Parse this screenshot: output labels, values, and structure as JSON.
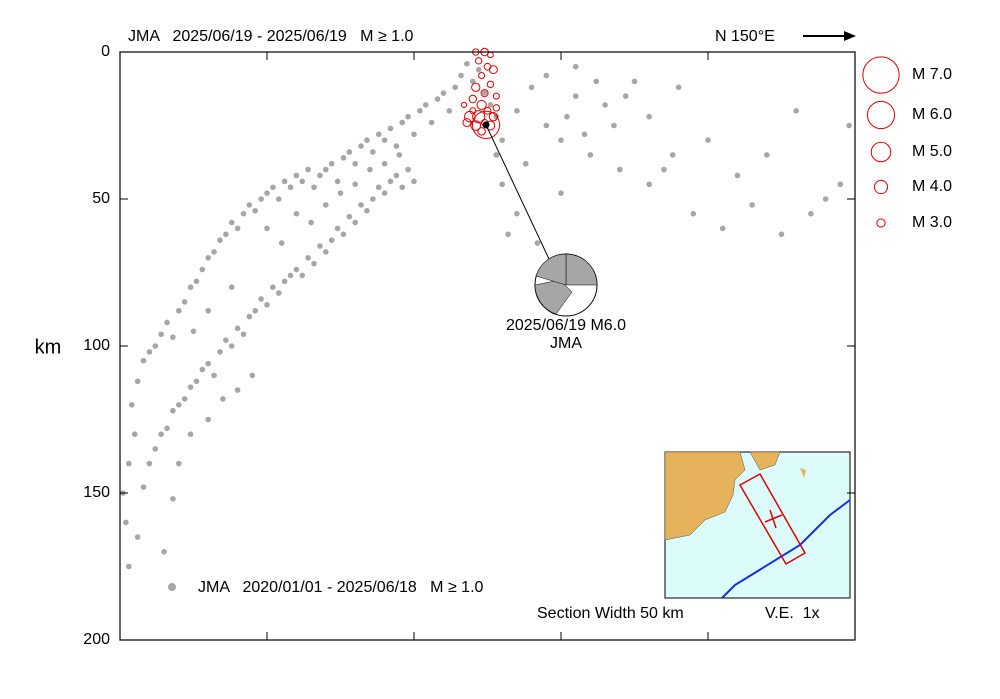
{
  "chart_data": {
    "type": "scatter",
    "header": "JMA   2025/06/19 - 2025/06/19   M ≥ 1.0",
    "direction_label": "N 150°E",
    "ylabel": "km",
    "xlim": [
      0,
      250
    ],
    "xticks": [
      50,
      100,
      150,
      200
    ],
    "ylim": [
      0,
      200
    ],
    "y_inverted": true,
    "yticks": [
      0,
      50,
      100,
      150,
      200
    ],
    "series": [
      {
        "name": "JMA   2020/01/01 - 2025/06/18   M ≥ 1.0",
        "color": "#a6a6a6",
        "x": [
          1,
          2,
          3,
          5,
          4,
          6,
          8,
          10,
          12,
          14,
          16,
          18,
          20,
          22,
          24,
          26,
          28,
          30,
          32,
          34,
          36,
          38,
          40,
          42,
          44,
          46,
          48,
          50,
          52,
          54,
          56,
          58,
          60,
          62,
          64,
          66,
          68,
          70,
          72,
          74,
          76,
          78,
          80,
          82,
          84,
          86,
          88,
          90,
          92,
          94,
          96,
          98,
          100,
          102,
          104,
          106,
          108,
          110,
          112,
          114,
          116,
          118,
          120,
          122,
          124,
          126,
          128,
          130,
          8,
          10,
          12,
          14,
          16,
          18,
          20,
          22,
          24,
          26,
          28,
          30,
          32,
          34,
          36,
          38,
          40,
          42,
          44,
          46,
          48,
          50,
          52,
          54,
          56,
          58,
          60,
          62,
          64,
          66,
          68,
          70,
          72,
          74,
          76,
          78,
          80,
          82,
          84,
          86,
          88,
          90,
          92,
          94,
          96,
          98,
          100,
          135,
          140,
          145,
          150,
          155,
          160,
          155,
          165,
          170,
          175,
          180,
          190,
          200,
          210,
          220,
          230,
          240,
          245,
          248,
          195,
          205,
          215,
          225,
          235,
          130,
          135,
          128,
          142,
          150,
          138,
          132,
          145,
          152,
          158,
          162,
          168,
          172,
          180,
          185,
          188,
          3,
          6,
          15,
          18,
          20,
          24,
          30,
          35,
          40,
          45,
          25,
          30,
          38,
          50,
          55,
          60,
          65,
          70,
          75,
          80,
          85,
          90,
          95
        ],
        "values": [
          150,
          160,
          140,
          130,
          120,
          112,
          105,
          102,
          100,
          96,
          92,
          97,
          88,
          85,
          80,
          78,
          74,
          70,
          68,
          64,
          62,
          58,
          60,
          55,
          52,
          54,
          50,
          48,
          46,
          50,
          44,
          46,
          42,
          44,
          40,
          46,
          42,
          40,
          38,
          44,
          36,
          34,
          38,
          32,
          30,
          34,
          28,
          30,
          26,
          32,
          24,
          22,
          28,
          20,
          18,
          24,
          16,
          14,
          20,
          12,
          8,
          4,
          10,
          6,
          14,
          18,
          22,
          30,
          148,
          140,
          135,
          130,
          128,
          122,
          120,
          118,
          114,
          112,
          108,
          106,
          110,
          102,
          98,
          100,
          94,
          96,
          90,
          88,
          84,
          86,
          80,
          82,
          78,
          76,
          74,
          76,
          70,
          72,
          66,
          68,
          64,
          60,
          62,
          56,
          58,
          52,
          54,
          50,
          46,
          48,
          44,
          42,
          46,
          40,
          44,
          20,
          12,
          25,
          30,
          15,
          35,
          5,
          18,
          40,
          10,
          22,
          12,
          30,
          42,
          35,
          20,
          50,
          45,
          25,
          55,
          60,
          52,
          62,
          55,
          45,
          55,
          35,
          65,
          48,
          38,
          62,
          8,
          22,
          28,
          10,
          25,
          15,
          45,
          40,
          35,
          175,
          165,
          170,
          152,
          140,
          130,
          125,
          118,
          115,
          110,
          95,
          88,
          80,
          60,
          65,
          55,
          58,
          52,
          48,
          45,
          40,
          38,
          35
        ]
      },
      {
        "name": "JMA   2025/06/19 - 2025/06/19   M ≥ 1.0",
        "color": "#e00000",
        "x": [
          121,
          124,
          126,
          122,
          125,
          123,
          127,
          121,
          124,
          126,
          120,
          123,
          128,
          119,
          122,
          125,
          127,
          118,
          121,
          124,
          126,
          120,
          117,
          128,
          123,
          124.5
        ],
        "values": [
          0,
          0,
          1,
          3,
          5,
          8,
          6,
          12,
          14,
          11,
          16,
          18,
          15,
          22,
          22,
          20,
          22,
          24,
          25,
          24,
          25,
          20,
          18,
          19,
          27,
          24.8
        ],
        "size": [
          2.5,
          2.8,
          2.3,
          2.5,
          2.6,
          2.4,
          2.9,
          3.0,
          2.7,
          2.5,
          2.8,
          3.2,
          2.4,
          3.5,
          3.8,
          2.6,
          3.0,
          2.9,
          3.3,
          2.5,
          3.1,
          2.4,
          2.2,
          2.5,
          2.8,
          6.0
        ]
      }
    ],
    "size_legend": [
      {
        "value": 7,
        "label": "M 7.0"
      },
      {
        "value": 6,
        "label": "M 6.0"
      },
      {
        "value": 5,
        "label": "M 5.0"
      },
      {
        "value": 4,
        "label": "M 4.0"
      },
      {
        "value": 3,
        "label": "M 3.0"
      }
    ],
    "annotation": {
      "text": "2025/06/19 M6.0",
      "source": "JMA"
    },
    "section_width": "Section Width 50 km",
    "vertical_exaggeration": "V.E.  1x"
  }
}
